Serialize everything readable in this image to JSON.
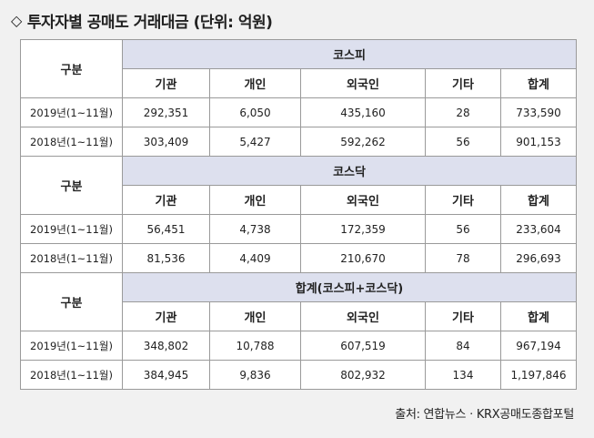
{
  "title": "투자자별 공매도 거래대금 (단위: 억원)",
  "title_icon": "diamond-outline-icon",
  "gubun_label": "구분",
  "columns": [
    "기관",
    "개인",
    "외국인",
    "기타",
    "합계"
  ],
  "sections": [
    {
      "name": "코스피",
      "rows": [
        {
          "period": "2019년(1~11월)",
          "values": [
            "292,351",
            "6,050",
            "435,160",
            "28",
            "733,590"
          ]
        },
        {
          "period": "2018년(1~11월)",
          "values": [
            "303,409",
            "5,427",
            "592,262",
            "56",
            "901,153"
          ]
        }
      ]
    },
    {
      "name": "코스닥",
      "rows": [
        {
          "period": "2019년(1~11월)",
          "values": [
            "56,451",
            "4,738",
            "172,359",
            "56",
            "233,604"
          ]
        },
        {
          "period": "2018년(1~11월)",
          "values": [
            "81,536",
            "4,409",
            "210,670",
            "78",
            "296,693"
          ]
        }
      ]
    },
    {
      "name": "합계(코스피+코스닥)",
      "rows": [
        {
          "period": "2019년(1~11월)",
          "values": [
            "348,802",
            "10,788",
            "607,519",
            "84",
            "967,194"
          ]
        },
        {
          "period": "2018년(1~11월)",
          "values": [
            "384,945",
            "9,836",
            "802,932",
            "134",
            "1,197,846"
          ]
        }
      ]
    }
  ],
  "source": "출처: 연합뉴스ㆍKRX공매도종합포털",
  "colors": {
    "header_fill": "#dde0ee",
    "border": "#9a9a9a",
    "background": "#f1f1f1"
  }
}
